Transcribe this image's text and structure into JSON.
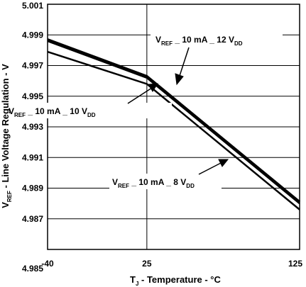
{
  "chart_data": {
    "type": "line",
    "xlabel_main": "T",
    "xlabel_sub": "J",
    "xlabel_rest": " - Temperature - °C",
    "ylabel_main": "V",
    "ylabel_sub": "REF",
    "ylabel_rest": " - Line Voltage Regulation - V",
    "xlim": [
      -40,
      125
    ],
    "ylim": [
      4.985,
      5.001
    ],
    "x_ticks": [
      -40,
      25,
      125
    ],
    "x_tick_labels": [
      "-40",
      "25",
      "125"
    ],
    "y_ticks": [
      4.985,
      4.987,
      4.989,
      4.991,
      4.993,
      4.995,
      4.997,
      4.999,
      5.001
    ],
    "y_tick_labels": [
      "4.985",
      "4.987",
      "4.989",
      "4.991",
      "4.993",
      "4.995",
      "4.997",
      "4.999",
      "5.001"
    ],
    "grid": true,
    "series": [
      {
        "name_main": "V",
        "name_sub1": "REF",
        "name_mid": " _ 10 mA _ 12 V",
        "name_sub2": "DD",
        "x": [
          -40,
          25,
          125
        ],
        "y": [
          4.9987,
          4.9963,
          4.9881
        ]
      },
      {
        "name_main": "V",
        "name_sub1": "REF",
        "name_mid": " _ 10 mA _ 10 V",
        "name_sub2": "DD",
        "x": [
          -40,
          25,
          125
        ],
        "y": [
          4.9986,
          4.9962,
          4.988
        ]
      },
      {
        "name_main": "V",
        "name_sub1": "REF",
        "name_mid": " _ 10 mA _ 8 V",
        "name_sub2": "DD",
        "x": [
          -40,
          25,
          125
        ],
        "y": [
          4.9979,
          4.9958,
          4.9876
        ]
      }
    ]
  }
}
